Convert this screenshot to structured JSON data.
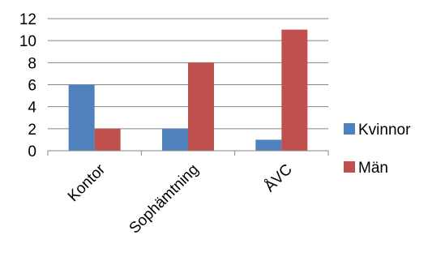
{
  "chart_data": {
    "type": "bar",
    "title": "",
    "xlabel": "",
    "ylabel": "",
    "categories": [
      "Kontor",
      "Sophämtning",
      "ÅVC"
    ],
    "series": [
      {
        "name": "Kvinnor",
        "values": [
          6,
          2,
          1
        ],
        "color": "#4F81BD"
      },
      {
        "name": "Män",
        "values": [
          2,
          8,
          11
        ],
        "color": "#C0504D"
      }
    ],
    "ylim": [
      0,
      12
    ],
    "yticks": [
      0,
      2,
      4,
      6,
      8,
      10,
      12
    ],
    "grid": true,
    "legend": "right"
  }
}
